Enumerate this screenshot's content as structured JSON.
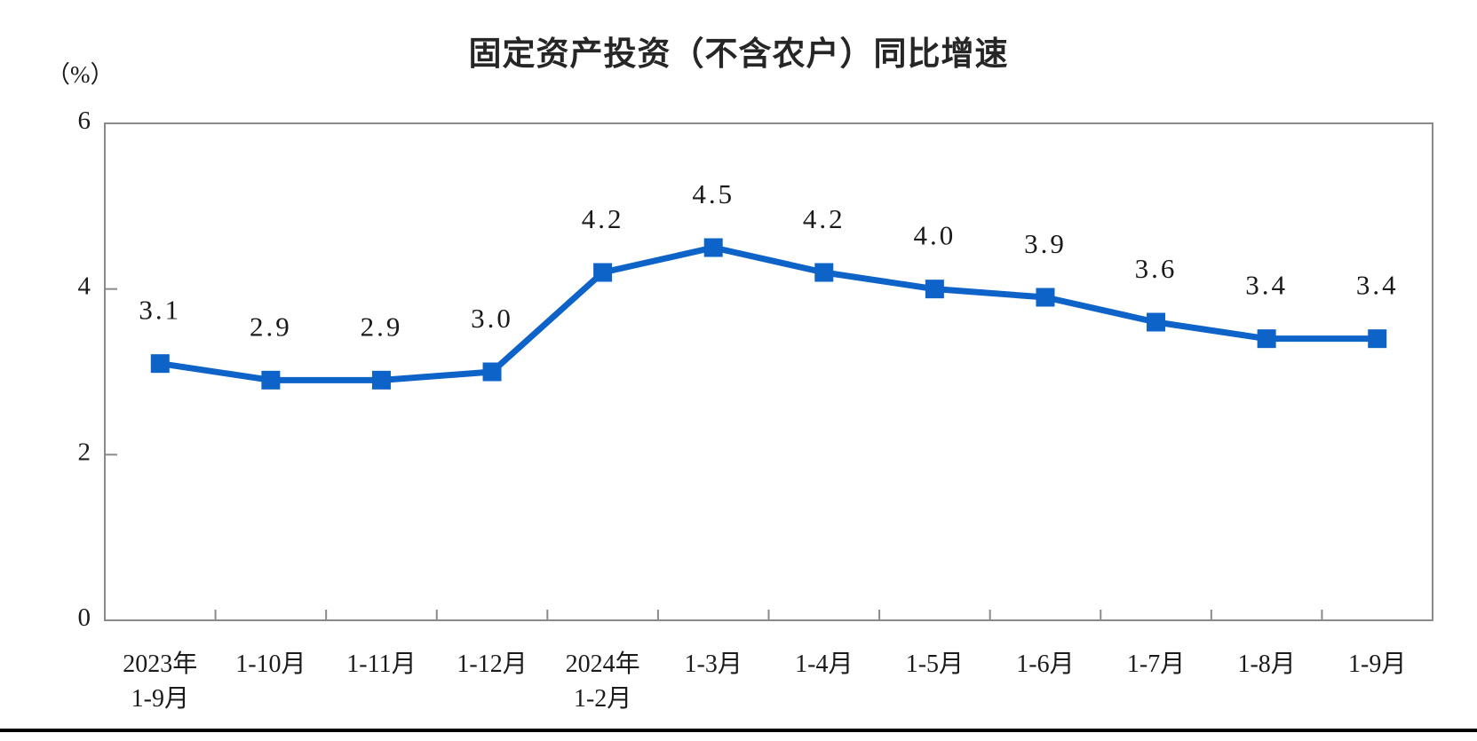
{
  "chart_data": {
    "type": "line",
    "title": "固定资产投资（不含农户）同比增速",
    "unit_label": "（%）",
    "categories": [
      [
        "2023年",
        "1-9月"
      ],
      [
        "1-10月"
      ],
      [
        "1-11月"
      ],
      [
        "1-12月"
      ],
      [
        "2024年",
        "1-2月"
      ],
      [
        "1-3月"
      ],
      [
        "1-4月"
      ],
      [
        "1-5月"
      ],
      [
        "1-6月"
      ],
      [
        "1-7月"
      ],
      [
        "1-8月"
      ],
      [
        "1-9月"
      ]
    ],
    "values": [
      3.1,
      2.9,
      2.9,
      3.0,
      4.2,
      4.5,
      4.2,
      4.0,
      3.9,
      3.6,
      3.4,
      3.4
    ],
    "data_labels": [
      "3.1",
      "2.9",
      "2.9",
      "3.0",
      "4.2",
      "4.5",
      "4.2",
      "4.0",
      "3.9",
      "3.6",
      "3.4",
      "3.4"
    ],
    "ylim": [
      0,
      6
    ],
    "yticks": [
      0,
      2,
      4,
      6
    ],
    "grid": false,
    "legend": "none",
    "marker": "square",
    "line_color": "#0e63c8",
    "axis_color": "#8a8a8a",
    "text_color": "#1a1a1a"
  }
}
